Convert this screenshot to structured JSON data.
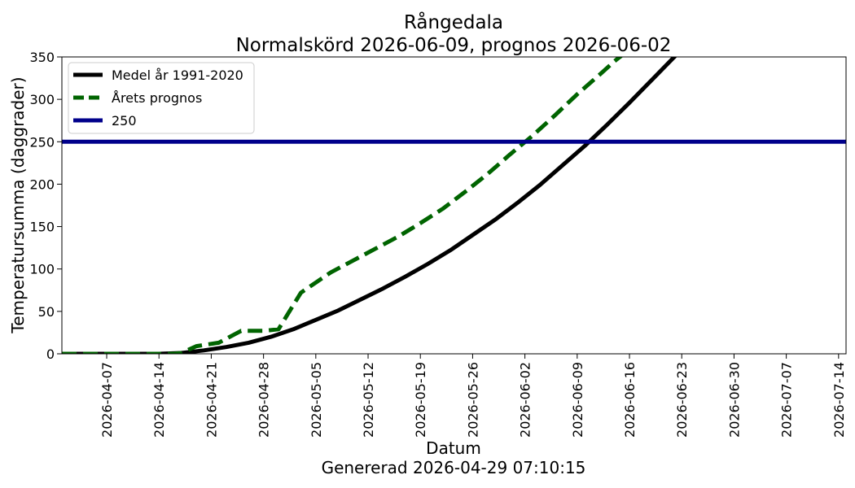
{
  "chart_data": {
    "type": "line",
    "title": "Rångedala",
    "subtitle": "Normalskörd 2026-06-09, prognos 2026-06-02",
    "xlabel": "Datum",
    "ylabel": "Temperatursumma (daggrader)",
    "footer": "Genererad 2026-04-29 07:10:15",
    "xlim": [
      "2026-04-01",
      "2026-07-15"
    ],
    "ylim": [
      0,
      350
    ],
    "x_ticks": [
      "2026-04-07",
      "2026-04-14",
      "2026-04-21",
      "2026-04-28",
      "2026-05-05",
      "2026-05-12",
      "2026-05-19",
      "2026-05-26",
      "2026-06-02",
      "2026-06-09",
      "2026-06-16",
      "2026-06-23",
      "2026-06-30",
      "2026-07-07",
      "2026-07-14"
    ],
    "y_ticks": [
      0,
      50,
      100,
      150,
      200,
      250,
      300,
      350
    ],
    "grid": false,
    "legend_position": "top-left",
    "series": [
      {
        "name": "Medel år 1991-2020",
        "color": "#000000",
        "style": "solid",
        "points": [
          [
            "2026-04-01",
            0
          ],
          [
            "2026-04-14",
            0
          ],
          [
            "2026-04-17",
            1
          ],
          [
            "2026-04-20",
            4
          ],
          [
            "2026-04-23",
            8
          ],
          [
            "2026-04-26",
            13
          ],
          [
            "2026-04-29",
            20
          ],
          [
            "2026-05-02",
            29
          ],
          [
            "2026-05-05",
            40
          ],
          [
            "2026-05-08",
            51
          ],
          [
            "2026-05-11",
            64
          ],
          [
            "2026-05-14",
            77
          ],
          [
            "2026-05-17",
            91
          ],
          [
            "2026-05-20",
            106
          ],
          [
            "2026-05-23",
            122
          ],
          [
            "2026-05-26",
            140
          ],
          [
            "2026-05-29",
            158
          ],
          [
            "2026-06-01",
            178
          ],
          [
            "2026-06-04",
            199
          ],
          [
            "2026-06-07",
            222
          ],
          [
            "2026-06-10",
            245
          ],
          [
            "2026-06-13",
            270
          ],
          [
            "2026-06-16",
            296
          ],
          [
            "2026-06-19",
            323
          ],
          [
            "2026-06-22",
            350
          ]
        ]
      },
      {
        "name": "Årets prognos",
        "color": "#006400",
        "style": "dashed",
        "points": [
          [
            "2026-04-01",
            0
          ],
          [
            "2026-04-16",
            0
          ],
          [
            "2026-04-17",
            1
          ],
          [
            "2026-04-19",
            9
          ],
          [
            "2026-04-22",
            13
          ],
          [
            "2026-04-25",
            27
          ],
          [
            "2026-04-28",
            27
          ],
          [
            "2026-04-30",
            29
          ],
          [
            "2026-05-03",
            72
          ],
          [
            "2026-05-05",
            84
          ],
          [
            "2026-05-07",
            96
          ],
          [
            "2026-05-10",
            110
          ],
          [
            "2026-05-13",
            124
          ],
          [
            "2026-05-16",
            138
          ],
          [
            "2026-05-19",
            154
          ],
          [
            "2026-05-22",
            171
          ],
          [
            "2026-05-25",
            191
          ],
          [
            "2026-05-28",
            212
          ],
          [
            "2026-05-31",
            235
          ],
          [
            "2026-06-03",
            257
          ],
          [
            "2026-06-06",
            281
          ],
          [
            "2026-06-09",
            306
          ],
          [
            "2026-06-12",
            329
          ],
          [
            "2026-06-14",
            345
          ],
          [
            "2026-06-15",
            352
          ]
        ]
      },
      {
        "name": "250",
        "color": "#00008B",
        "style": "solid",
        "points": [
          [
            "2026-04-01",
            250
          ],
          [
            "2026-07-15",
            250
          ]
        ]
      }
    ]
  }
}
